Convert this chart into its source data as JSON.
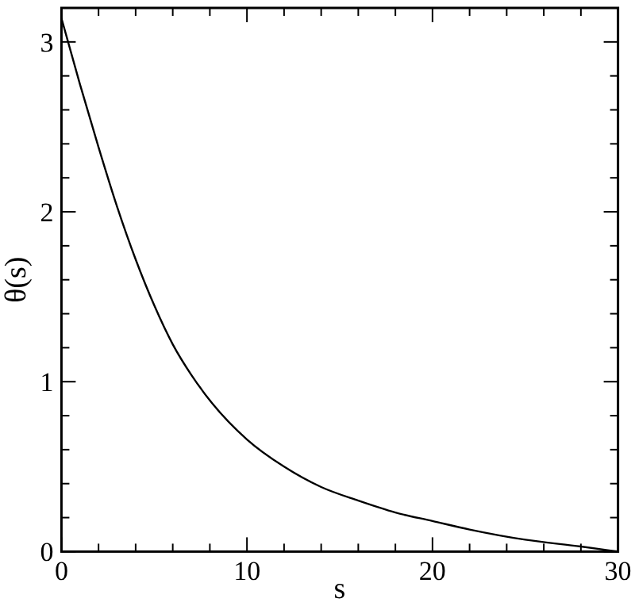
{
  "chart_data": {
    "type": "line",
    "xlabel": "s",
    "ylabel": "θ(s)",
    "x": [
      0,
      1,
      2,
      3,
      4,
      5,
      6,
      7,
      8,
      10,
      12,
      14,
      16,
      18,
      20,
      22,
      25,
      28,
      30
    ],
    "series": [
      {
        "color": "#000000",
        "values": [
          3.14,
          2.75,
          2.38,
          2.03,
          1.72,
          1.45,
          1.22,
          1.04,
          0.89,
          0.66,
          0.5,
          0.38,
          0.3,
          0.23,
          0.18,
          0.13,
          0.07,
          0.03,
          0
        ]
      }
    ],
    "xlim": [
      0,
      30
    ],
    "ylim": [
      0,
      3.2
    ],
    "xticks": [
      0,
      {
        "value": 2,
        "label": null
      },
      {
        "value": 4,
        "label": null
      },
      {
        "value": 6,
        "label": null
      },
      {
        "value": 8,
        "label": null
      },
      10,
      {
        "value": 12,
        "label": null
      },
      {
        "value": 14,
        "label": null
      },
      {
        "value": 16,
        "label": null
      },
      {
        "value": 18,
        "label": null
      },
      20,
      {
        "value": 22,
        "label": null
      },
      {
        "value": 24,
        "label": null
      },
      {
        "value": 26,
        "label": null
      },
      {
        "value": 28,
        "label": null
      },
      30
    ],
    "yticks": [
      0,
      {
        "value": 0.2,
        "label": null
      },
      {
        "value": 0.4,
        "label": null
      },
      {
        "value": 0.6,
        "label": null
      },
      {
        "value": 0.8,
        "label": null
      },
      1,
      {
        "value": 1.2,
        "label": null
      },
      {
        "value": 1.4,
        "label": null
      },
      {
        "value": 1.6,
        "label": null
      },
      {
        "value": 1.8,
        "label": null
      },
      2,
      {
        "value": 2.2,
        "label": null
      },
      {
        "value": 2.4,
        "label": null
      },
      {
        "value": 2.6,
        "label": null
      },
      {
        "value": 2.8,
        "label": null
      },
      3
    ],
    "grid": false,
    "marker": "none",
    "line_style": "solid"
  }
}
